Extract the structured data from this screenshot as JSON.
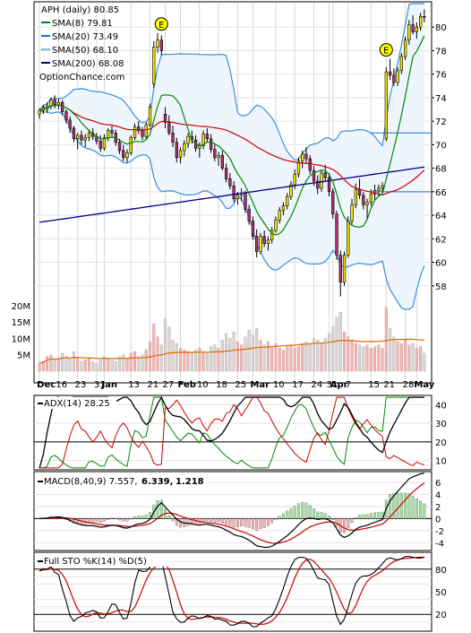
{
  "chart_data": {
    "type": "candlestick",
    "colors": {
      "sma8": "#008800",
      "sma20": "#1e6fd0",
      "sma50": "#7fc0ef",
      "sma200": "#00008b",
      "bollinger": "#3a8fe0",
      "volume_up": "#f3b4b4",
      "volume_down": "#d6d6d6",
      "vol_ma": "#e06a00",
      "adx": "#000000",
      "plus_di": "#008800",
      "minus_di": "#cc0000",
      "macd": "#000000",
      "macd_signal": "#cc0000",
      "macd_hist_up": "#a0e0a0",
      "macd_hist_down": "#f0b0b0",
      "sto_k": "#000000",
      "sto_d": "#cc0000"
    },
    "price_panel": {
      "legend": [
        {
          "label": "APH (daily) 80.85",
          "color": ""
        },
        {
          "label": "SMA(8) 79.81",
          "color": "#008800"
        },
        {
          "label": "SMA(20) 73.49",
          "color": "#1e6fd0"
        },
        {
          "label": "SMA(50) 68.10",
          "color": "#7fc0ef"
        },
        {
          "label": "SMA(200) 68.08",
          "color": "#00008b"
        }
      ],
      "watermark": "OptionChance.com",
      "ylim": [
        56,
        82
      ],
      "yticks": [
        58,
        60,
        62,
        64,
        66,
        68,
        70,
        72,
        74,
        76,
        78,
        80
      ],
      "earnings_markers": [
        {
          "label": "E",
          "x_index": 32,
          "price": 79.5
        },
        {
          "label": "E",
          "x_index": 91,
          "price": 77.3
        }
      ],
      "horizontal_lines": [
        71,
        66
      ]
    },
    "volume_panel": {
      "ylim": [
        0,
        23
      ],
      "yticks": [
        {
          "value": 5,
          "label": "5M"
        },
        {
          "value": 10,
          "label": "10M"
        },
        {
          "value": 15,
          "label": "15M"
        },
        {
          "value": 20,
          "label": "20M"
        }
      ]
    },
    "x_axis": {
      "labels": [
        {
          "label": "Dec",
          "x_index": 0,
          "bold": true
        },
        {
          "label": "16",
          "x_index": 5,
          "bold": false
        },
        {
          "label": "23",
          "x_index": 10,
          "bold": false
        },
        {
          "label": "31",
          "x_index": 15,
          "bold": false
        },
        {
          "label": "Jan",
          "x_index": 17,
          "bold": true
        },
        {
          "label": "13",
          "x_index": 24,
          "bold": false
        },
        {
          "label": "21",
          "x_index": 29,
          "bold": false
        },
        {
          "label": "27",
          "x_index": 33,
          "bold": false
        },
        {
          "label": "Feb",
          "x_index": 37,
          "bold": true
        },
        {
          "label": "10",
          "x_index": 42,
          "bold": false
        },
        {
          "label": "18",
          "x_index": 47,
          "bold": false
        },
        {
          "label": "25",
          "x_index": 52,
          "bold": false
        },
        {
          "label": "Mar",
          "x_index": 56,
          "bold": true
        },
        {
          "label": "10",
          "x_index": 62,
          "bold": false
        },
        {
          "label": "17",
          "x_index": 67,
          "bold": false
        },
        {
          "label": "24",
          "x_index": 72,
          "bold": false
        },
        {
          "label": "31",
          "x_index": 76,
          "bold": false
        },
        {
          "label": "Apr",
          "x_index": 77,
          "bold": true
        },
        {
          "label": "7",
          "x_index": 81,
          "bold": false
        },
        {
          "label": "15",
          "x_index": 87,
          "bold": false
        },
        {
          "label": "21",
          "x_index": 91,
          "bold": false
        },
        {
          "label": "28",
          "x_index": 96,
          "bold": false
        },
        {
          "label": "May",
          "x_index": 99,
          "bold": true
        }
      ]
    },
    "adx_panel": {
      "legend": "ADX(14) 28.25",
      "ylim": [
        5,
        45
      ],
      "yticks": [
        10,
        20,
        30,
        40
      ],
      "ref_line": 20
    },
    "macd_panel": {
      "legend_prefix": "MACD(8,40,9) 7.557,",
      "legend_signal": "6.339,",
      "legend_hist": "1.218",
      "ylim": [
        -5,
        7.5
      ],
      "yticks": [
        -4,
        -2,
        0,
        2,
        4,
        6
      ]
    },
    "sto_panel": {
      "legend": "Full STO %K(14) %D(5)",
      "ylim": [
        0,
        100
      ],
      "yticks": [
        20,
        50,
        80
      ],
      "ref_lines": [
        20,
        80
      ]
    },
    "ohlc": [
      [
        72.6,
        73.1,
        72.2,
        72.9
      ],
      [
        72.9,
        73.4,
        72.6,
        73.2
      ],
      [
        73.0,
        73.6,
        72.7,
        73.3
      ],
      [
        73.3,
        74.0,
        73.0,
        73.8
      ],
      [
        73.8,
        74.2,
        73.1,
        73.4
      ],
      [
        73.4,
        73.9,
        73.0,
        73.6
      ],
      [
        73.6,
        73.8,
        72.5,
        72.8
      ],
      [
        72.8,
        73.0,
        71.8,
        72.1
      ],
      [
        72.1,
        72.4,
        71.0,
        71.4
      ],
      [
        71.4,
        71.6,
        70.2,
        70.5
      ],
      [
        70.5,
        71.0,
        69.6,
        70.8
      ],
      [
        70.8,
        71.2,
        70.0,
        70.4
      ],
      [
        70.4,
        70.9,
        69.8,
        70.6
      ],
      [
        70.6,
        71.3,
        70.3,
        71.0
      ],
      [
        71.0,
        71.4,
        70.4,
        70.7
      ],
      [
        70.7,
        71.0,
        70.0,
        70.3
      ],
      [
        70.3,
        70.8,
        69.4,
        69.7
      ],
      [
        69.7,
        70.9,
        69.5,
        70.6
      ],
      [
        70.6,
        71.4,
        70.3,
        71.2
      ],
      [
        71.2,
        71.6,
        70.7,
        71.0
      ],
      [
        71.0,
        71.3,
        69.9,
        70.2
      ],
      [
        70.2,
        70.5,
        69.2,
        69.5
      ],
      [
        69.5,
        70.0,
        68.6,
        68.9
      ],
      [
        68.9,
        69.6,
        68.5,
        69.3
      ],
      [
        69.3,
        70.8,
        69.1,
        70.6
      ],
      [
        70.6,
        71.8,
        70.4,
        71.5
      ],
      [
        71.5,
        72.0,
        70.9,
        71.2
      ],
      [
        71.2,
        71.5,
        70.4,
        70.7
      ],
      [
        70.7,
        71.9,
        70.5,
        71.7
      ],
      [
        71.7,
        73.5,
        71.5,
        73.2
      ],
      [
        75.2,
        78.8,
        74.8,
        78.3
      ],
      [
        78.3,
        79.5,
        77.8,
        78.9
      ],
      [
        78.9,
        79.3,
        77.6,
        78.0
      ],
      [
        72.6,
        73.2,
        71.4,
        71.9
      ],
      [
        71.9,
        72.5,
        70.8,
        71.0
      ],
      [
        71.0,
        71.6,
        69.8,
        70.2
      ],
      [
        70.2,
        70.6,
        68.5,
        68.9
      ],
      [
        68.9,
        69.8,
        68.4,
        69.5
      ],
      [
        69.5,
        70.4,
        69.0,
        70.1
      ],
      [
        70.1,
        71.0,
        69.7,
        70.7
      ],
      [
        70.7,
        71.2,
        70.1,
        70.4
      ],
      [
        70.4,
        70.8,
        69.4,
        69.7
      ],
      [
        69.7,
        70.2,
        68.9,
        69.9
      ],
      [
        69.9,
        71.2,
        69.6,
        70.9
      ],
      [
        70.9,
        71.4,
        70.2,
        70.5
      ],
      [
        70.5,
        70.9,
        69.3,
        69.6
      ],
      [
        69.6,
        70.0,
        68.6,
        68.9
      ],
      [
        68.9,
        69.4,
        68.2,
        69.1
      ],
      [
        69.1,
        69.5,
        67.8,
        68.0
      ],
      [
        68.0,
        68.4,
        66.8,
        67.1
      ],
      [
        67.1,
        67.6,
        66.2,
        66.5
      ],
      [
        66.5,
        66.9,
        65.1,
        65.4
      ],
      [
        65.4,
        66.0,
        64.9,
        65.7
      ],
      [
        65.7,
        66.3,
        65.2,
        65.9
      ],
      [
        65.9,
        66.1,
        64.2,
        64.5
      ],
      [
        64.5,
        64.9,
        63.2,
        63.5
      ],
      [
        63.5,
        63.9,
        61.9,
        62.2
      ],
      [
        62.2,
        62.8,
        60.4,
        60.9
      ],
      [
        60.9,
        62.5,
        60.7,
        62.2
      ],
      [
        62.2,
        62.7,
        61.3,
        61.6
      ],
      [
        61.6,
        62.2,
        61.0,
        61.9
      ],
      [
        61.9,
        63.0,
        61.6,
        62.7
      ],
      [
        62.7,
        63.9,
        62.5,
        63.6
      ],
      [
        63.6,
        64.7,
        63.3,
        64.4
      ],
      [
        64.4,
        65.1,
        64.0,
        64.8
      ],
      [
        64.8,
        65.9,
        64.5,
        65.6
      ],
      [
        65.6,
        66.9,
        65.3,
        66.6
      ],
      [
        66.6,
        67.9,
        66.2,
        67.5
      ],
      [
        67.5,
        68.9,
        67.2,
        68.6
      ],
      [
        68.6,
        69.5,
        68.0,
        69.2
      ],
      [
        69.2,
        69.8,
        68.4,
        68.8
      ],
      [
        68.8,
        69.1,
        67.5,
        67.8
      ],
      [
        67.8,
        68.2,
        66.5,
        66.9
      ],
      [
        66.9,
        67.4,
        65.8,
        66.3
      ],
      [
        66.3,
        67.8,
        66.0,
        67.6
      ],
      [
        67.6,
        68.3,
        66.9,
        67.2
      ],
      [
        67.2,
        67.6,
        65.6,
        66.0
      ],
      [
        66.0,
        66.3,
        63.7,
        64.1
      ],
      [
        64.1,
        64.4,
        60.2,
        60.6
      ],
      [
        60.6,
        61.0,
        57.1,
        58.3
      ],
      [
        58.3,
        60.9,
        58.0,
        60.6
      ],
      [
        60.6,
        63.9,
        60.4,
        63.5
      ],
      [
        63.5,
        65.4,
        63.2,
        64.9
      ],
      [
        64.9,
        66.7,
        64.6,
        66.2
      ],
      [
        66.2,
        67.1,
        65.4,
        65.7
      ],
      [
        65.7,
        66.0,
        64.5,
        64.9
      ],
      [
        64.9,
        65.4,
        63.6,
        65.1
      ],
      [
        65.1,
        66.2,
        64.8,
        65.8
      ],
      [
        65.8,
        66.6,
        65.3,
        66.1
      ],
      [
        66.1,
        66.6,
        65.6,
        66.3
      ],
      [
        66.3,
        66.8,
        65.9,
        66.5
      ],
      [
        70.5,
        76.6,
        70.3,
        76.2
      ],
      [
        76.2,
        77.3,
        75.5,
        75.9
      ],
      [
        75.9,
        76.5,
        75.0,
        75.3
      ],
      [
        75.3,
        76.6,
        75.0,
        76.3
      ],
      [
        76.3,
        77.8,
        76.0,
        77.5
      ],
      [
        77.5,
        79.2,
        77.2,
        78.9
      ],
      [
        78.9,
        80.6,
        78.5,
        80.2
      ],
      [
        80.2,
        81.0,
        79.4,
        79.6
      ],
      [
        79.6,
        80.4,
        79.0,
        80.0
      ],
      [
        80.0,
        81.2,
        79.7,
        80.9
      ],
      [
        80.9,
        81.5,
        80.4,
        80.85
      ]
    ],
    "volume_millions": [
      2.5,
      3.0,
      4.5,
      5.0,
      3.5,
      4.0,
      5.5,
      4.5,
      3.8,
      6.0,
      4.0,
      3.0,
      3.5,
      4.0,
      3.0,
      2.5,
      3.5,
      4.5,
      4.0,
      3.5,
      3.0,
      4.5,
      5.0,
      4.0,
      5.5,
      6.0,
      4.5,
      5.0,
      6.5,
      9.0,
      14.5,
      10.5,
      8.0,
      16.0,
      13.5,
      9.5,
      8.5,
      7.0,
      6.5,
      6.0,
      5.5,
      6.5,
      7.0,
      6.0,
      5.5,
      7.5,
      8.0,
      7.0,
      9.5,
      11.5,
      10.0,
      12.0,
      9.0,
      8.0,
      10.5,
      12.5,
      11.0,
      13.0,
      9.5,
      8.0,
      9.0,
      7.5,
      8.5,
      7.0,
      6.5,
      7.5,
      8.0,
      7.0,
      7.5,
      8.5,
      9.0,
      8.0,
      10.0,
      9.5,
      8.5,
      10.0,
      11.5,
      13.5,
      16.5,
      18.0,
      12.0,
      10.5,
      9.5,
      8.5,
      8.0,
      7.5,
      8.0,
      7.0,
      7.5,
      8.0,
      7.0,
      19.5,
      13.0,
      10.5,
      9.0,
      8.5,
      9.5,
      8.0,
      8.5,
      7.0,
      7.5,
      5.5
    ]
  }
}
